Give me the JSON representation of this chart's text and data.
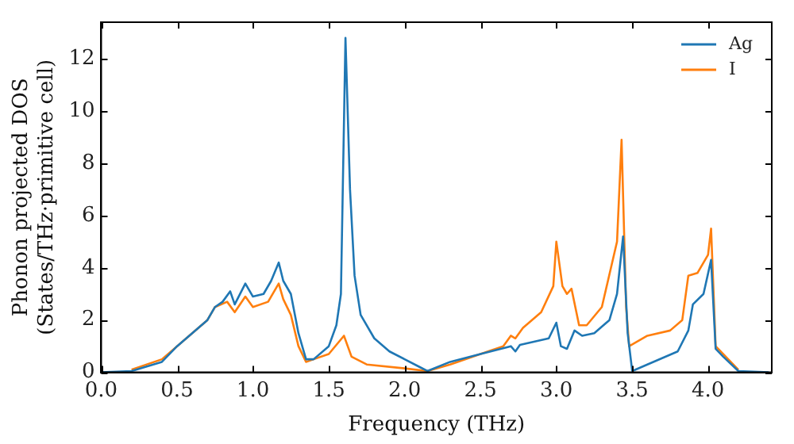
{
  "chart_data": {
    "type": "line",
    "xlabel": "Frequency (THz)",
    "ylabel": "Phonon projected DOS\n(States/THz·primitive cell)",
    "xlim": [
      0,
      4.42
    ],
    "ylim": [
      0,
      13.4
    ],
    "xticks": [
      {
        "value": 0,
        "label": "0.0"
      },
      {
        "value": 0.5,
        "label": "0.5"
      },
      {
        "value": 1,
        "label": "1.0"
      },
      {
        "value": 1.5,
        "label": "1.5"
      },
      {
        "value": 2,
        "label": "2.0"
      },
      {
        "value": 2.5,
        "label": "2.5"
      },
      {
        "value": 3,
        "label": "3.0"
      },
      {
        "value": 3.5,
        "label": "3.5"
      },
      {
        "value": 4,
        "label": "4.0"
      }
    ],
    "yticks": [
      0,
      2,
      4,
      6,
      8,
      10,
      12
    ],
    "grid": false,
    "legend": "top right",
    "marker": "none",
    "line_style": "solid",
    "series": [
      {
        "name": "Ag",
        "color": "#1f77b4",
        "x": [
          0,
          0.2,
          0.4,
          0.5,
          0.6,
          0.7,
          0.75,
          0.8,
          0.85,
          0.88,
          0.95,
          1.0,
          1.07,
          1.12,
          1.17,
          1.2,
          1.25,
          1.3,
          1.35,
          1.4,
          1.5,
          1.55,
          1.58,
          1.61,
          1.64,
          1.67,
          1.71,
          1.8,
          1.9,
          2.0,
          2.1,
          2.15,
          2.3,
          2.5,
          2.7,
          2.73,
          2.76,
          2.95,
          3.0,
          3.03,
          3.07,
          3.12,
          3.17,
          3.25,
          3.35,
          3.4,
          3.44,
          3.47,
          3.5,
          3.6,
          3.8,
          3.87,
          3.9,
          3.97,
          4.02,
          4.05,
          4.1,
          4.2,
          4.4
        ],
        "values": [
          0,
          0.05,
          0.4,
          1.0,
          1.5,
          2.0,
          2.5,
          2.7,
          3.1,
          2.6,
          3.4,
          2.9,
          3.0,
          3.5,
          4.2,
          3.5,
          3.0,
          1.5,
          0.5,
          0.5,
          1.0,
          1.8,
          3.0,
          12.8,
          7.0,
          3.7,
          2.2,
          1.3,
          0.8,
          0.5,
          0.2,
          0.05,
          0.4,
          0.7,
          1.0,
          0.8,
          1.05,
          1.3,
          1.9,
          1.0,
          0.9,
          1.6,
          1.4,
          1.5,
          2.0,
          3.0,
          5.2,
          1.5,
          0.05,
          0.3,
          0.8,
          1.6,
          2.6,
          3.0,
          4.3,
          0.9,
          0.6,
          0.05,
          0
        ]
      },
      {
        "name": "I",
        "color": "#ff7f0e",
        "x": [
          0.2,
          0.4,
          0.5,
          0.6,
          0.7,
          0.75,
          0.83,
          0.88,
          0.95,
          1.0,
          1.1,
          1.17,
          1.2,
          1.25,
          1.3,
          1.35,
          1.4,
          1.5,
          1.6,
          1.65,
          1.75,
          2.0,
          2.15,
          2.3,
          2.5,
          2.65,
          2.7,
          2.73,
          2.78,
          2.9,
          2.98,
          3.0,
          3.04,
          3.07,
          3.1,
          3.15,
          3.2,
          3.3,
          3.4,
          3.43,
          3.46,
          3.48,
          3.6,
          3.75,
          3.83,
          3.87,
          3.93,
          4.0,
          4.02,
          4.05,
          4.2
        ],
        "values": [
          0.1,
          0.5,
          1.0,
          1.5,
          2.0,
          2.5,
          2.7,
          2.3,
          2.9,
          2.5,
          2.7,
          3.4,
          2.8,
          2.2,
          1.0,
          0.4,
          0.5,
          0.7,
          1.4,
          0.6,
          0.3,
          0.15,
          0.05,
          0.3,
          0.7,
          1.0,
          1.4,
          1.3,
          1.7,
          2.3,
          3.3,
          5.0,
          3.3,
          3.0,
          3.2,
          1.8,
          1.8,
          2.5,
          5.0,
          8.9,
          2.5,
          1.0,
          1.4,
          1.6,
          2.0,
          3.7,
          3.8,
          4.5,
          5.5,
          1.0,
          0.1
        ]
      }
    ]
  }
}
